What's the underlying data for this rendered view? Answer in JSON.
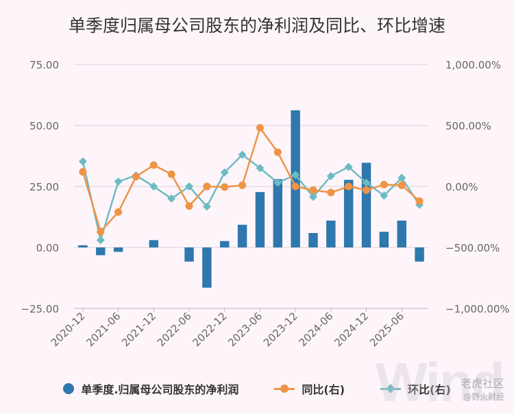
{
  "title": "单季度归属母公司股东的净利润及同比、环比增速",
  "colors": {
    "bar": "#2e78ad",
    "yoy": "#ee9446",
    "qoq": "#6dbbc2",
    "grid": "#d8d3da",
    "axis_text": "#666666"
  },
  "legend": {
    "bar_label": "单季度.归属母公司股东的净利润",
    "yoy_label": "同比(右)",
    "qoq_label": "环比(右)"
  },
  "watermark": {
    "big": "Wind",
    "small_top": "老虎社区",
    "small_bottom": "@野火财经"
  },
  "chart_data": {
    "type": "bar",
    "quarters": [
      "2020-12",
      "2021-03",
      "2021-06",
      "2021-09",
      "2021-12",
      "2022-03",
      "2022-06",
      "2022-09",
      "2022-12",
      "2023-03",
      "2023-06",
      "2023-09",
      "2023-12",
      "2024-03",
      "2024-06",
      "2024-09",
      "2024-12",
      "2025-03",
      "2025-06",
      "2025-09"
    ],
    "x_tick_labels": [
      "2020-12",
      "2021-06",
      "2021-12",
      "2022-06",
      "2022-12",
      "2023-06",
      "2023-12",
      "2024-06",
      "2024-12",
      "2025-06"
    ],
    "left_axis": {
      "ylim": [
        -25,
        75
      ],
      "ticks": [
        "75.00",
        "50.00",
        "25.00",
        "0.00",
        "−25.00"
      ],
      "tick_values": [
        75,
        50,
        25,
        0,
        -25
      ]
    },
    "right_axis": {
      "ylim": [
        -1000,
        1000
      ],
      "ticks": [
        "1,000.00%",
        "500.00%",
        "0.00%",
        "−500.00%",
        "−1,000.00%"
      ],
      "tick_values": [
        1000,
        500,
        0,
        -500,
        -1000
      ]
    },
    "series": [
      {
        "name": "单季度.归属母公司股东的净利润",
        "axis": "left",
        "kind": "bar",
        "values": [
          0.9,
          -3.2,
          -1.8,
          null,
          3.0,
          null,
          -5.8,
          -16.5,
          2.6,
          9.3,
          22.7,
          28.0,
          56.2,
          5.9,
          11.0,
          27.7,
          34.7,
          6.4,
          11.0,
          -5.8
        ]
      },
      {
        "name": "同比(右)",
        "axis": "right",
        "kind": "line",
        "values": [
          120,
          -370,
          -210,
          80,
          175,
          100,
          -160,
          0,
          -5,
          10,
          480,
          280,
          0,
          -30,
          -50,
          0,
          -30,
          15,
          10,
          -120
        ]
      },
      {
        "name": "环比(右)",
        "axis": "right",
        "kind": "line",
        "values": [
          205,
          -440,
          40,
          90,
          0,
          -100,
          0,
          -165,
          115,
          260,
          150,
          30,
          95,
          -85,
          85,
          160,
          30,
          -75,
          70,
          -150
        ]
      }
    ]
  }
}
